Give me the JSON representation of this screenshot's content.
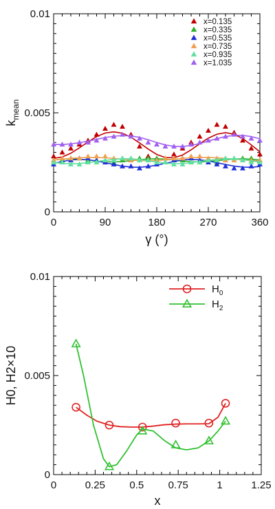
{
  "chart_data": [
    {
      "type": "scatter",
      "xlabel": "γ (°)",
      "ylabel_main": "k",
      "ylabel_sub": "mean",
      "xlim": [
        0,
        360
      ],
      "ylim": [
        0,
        0.01
      ],
      "xticks": [
        0,
        90,
        180,
        270,
        360
      ],
      "xtick_labels": [
        "0",
        "90",
        "180",
        "270",
        "360"
      ],
      "yticks": [
        0,
        0.005,
        0.01
      ],
      "ytick_labels": [
        "0",
        "0.005",
        "0.01"
      ],
      "grid": false,
      "legend_position": "top-right",
      "x": [
        0,
        15,
        30,
        45,
        60,
        75,
        90,
        105,
        120,
        135,
        150,
        165,
        180,
        195,
        210,
        225,
        240,
        255,
        270,
        285,
        300,
        315,
        330,
        345,
        360
      ],
      "series": [
        {
          "name": "x=0.135",
          "color": "#c00000",
          "values": [
            0.0028,
            0.003,
            0.0032,
            0.0034,
            0.0036,
            0.0039,
            0.0042,
            0.0044,
            0.0043,
            0.0039,
            0.0033,
            0.0028,
            0.0026,
            0.0027,
            0.0029,
            0.0032,
            0.0035,
            0.0038,
            0.0041,
            0.0044,
            0.0043,
            0.004,
            0.0036,
            0.0032,
            0.0029
          ],
          "fit": [
            0.0027,
            0.00277,
            0.00296,
            0.00323,
            0.00353,
            0.0038,
            0.00398,
            0.00404,
            0.00397,
            0.00377,
            0.00348,
            0.00317,
            0.0029,
            0.00274,
            0.00273,
            0.00287,
            0.00313,
            0.00344,
            0.00372,
            0.00392,
            0.004,
            0.00392,
            0.0037,
            0.00338,
            0.00303
          ]
        },
        {
          "name": "x=0.335",
          "color": "#2ab02a",
          "values": [
            0.0026,
            0.0026,
            0.0027,
            0.0027,
            0.0026,
            0.0026,
            0.0025,
            0.0025,
            0.0026,
            0.0026,
            0.0027,
            0.0027,
            0.0027,
            0.0027,
            0.0026,
            0.0026,
            0.0025,
            0.0025,
            0.0025,
            0.0025,
            0.0026,
            0.0026,
            0.0027,
            0.0027,
            0.0026
          ],
          "fit": [
            0.00262,
            0.00266,
            0.00268,
            0.00266,
            0.00262,
            0.00257,
            0.00253,
            0.00252,
            0.00254,
            0.00258,
            0.00263,
            0.00267,
            0.00268,
            0.00266,
            0.00262,
            0.00257,
            0.00253,
            0.00252,
            0.00254,
            0.00258,
            0.00263,
            0.00267,
            0.00268,
            0.00266,
            0.00262
          ]
        },
        {
          "name": "x=0.535",
          "color": "#2030d8",
          "values": [
            0.0024,
            0.0025,
            0.0026,
            0.0027,
            0.0027,
            0.0026,
            0.0025,
            0.0024,
            0.0023,
            0.0023,
            0.0022,
            0.0023,
            0.0024,
            0.0025,
            0.0026,
            0.0027,
            0.0027,
            0.0026,
            0.0025,
            0.0024,
            0.0023,
            0.0022,
            0.0022,
            0.0023,
            0.0024
          ],
          "fit": [
            0.00245,
            0.00254,
            0.00262,
            0.00265,
            0.00263,
            0.00257,
            0.00248,
            0.00239,
            0.00231,
            0.00226,
            0.00225,
            0.00229,
            0.00236,
            0.00245,
            0.00254,
            0.00262,
            0.00265,
            0.00263,
            0.00257,
            0.00248,
            0.00239,
            0.00231,
            0.00226,
            0.00225,
            0.00229
          ]
        },
        {
          "name": "x=0.735",
          "color": "#f0a050",
          "values": [
            0.0026,
            0.0027,
            0.0027,
            0.0027,
            0.0028,
            0.0028,
            0.0028,
            0.0027,
            0.0027,
            0.0026,
            0.0026,
            0.0026,
            0.0026,
            0.0027,
            0.0027,
            0.0027,
            0.0028,
            0.0028,
            0.0027,
            0.0027,
            0.0026,
            0.0026,
            0.0026,
            0.0026,
            0.0026
          ],
          "fit": [
            0.00262,
            0.00266,
            0.0027,
            0.00273,
            0.00275,
            0.00275,
            0.00273,
            0.0027,
            0.00266,
            0.00262,
            0.00259,
            0.00258,
            0.00259,
            0.00262,
            0.00266,
            0.0027,
            0.00273,
            0.00275,
            0.00275,
            0.00273,
            0.0027,
            0.00266,
            0.00262,
            0.00259,
            0.00258
          ]
        },
        {
          "name": "x=0.935",
          "color": "#60e0a0",
          "values": [
            0.0025,
            0.0025,
            0.0024,
            0.0024,
            0.0025,
            0.0025,
            0.0026,
            0.0026,
            0.0027,
            0.0027,
            0.0026,
            0.0026,
            0.0025,
            0.0025,
            0.0024,
            0.0024,
            0.0025,
            0.0025,
            0.0026,
            0.0026,
            0.0027,
            0.0027,
            0.0026,
            0.0025,
            0.0025
          ],
          "fit": [
            0.0025,
            0.00245,
            0.00243,
            0.00244,
            0.00248,
            0.00254,
            0.0026,
            0.00265,
            0.00268,
            0.00268,
            0.00264,
            0.00258,
            0.00251,
            0.00246,
            0.00243,
            0.00244,
            0.00248,
            0.00254,
            0.0026,
            0.00265,
            0.00268,
            0.00268,
            0.00264,
            0.00258,
            0.00251
          ]
        },
        {
          "name": "x=1.035",
          "color": "#a060f0",
          "values": [
            0.0034,
            0.0034,
            0.0034,
            0.0035,
            0.0035,
            0.0036,
            0.0037,
            0.0038,
            0.0039,
            0.0038,
            0.0037,
            0.0035,
            0.0034,
            0.0033,
            0.0033,
            0.0033,
            0.0034,
            0.0035,
            0.0036,
            0.0037,
            0.0038,
            0.0039,
            0.0038,
            0.0037,
            0.0036
          ],
          "fit": [
            0.0034,
            0.0034,
            0.00343,
            0.00349,
            0.00357,
            0.00366,
            0.00375,
            0.00382,
            0.00385,
            0.00383,
            0.00376,
            0.00364,
            0.0035,
            0.00338,
            0.00331,
            0.0033,
            0.00335,
            0.00345,
            0.00357,
            0.0037,
            0.0038,
            0.00386,
            0.00386,
            0.0038,
            0.00369
          ]
        }
      ]
    },
    {
      "type": "line",
      "xlabel": "x",
      "ylabel": "H0, H2×10",
      "xlim": [
        0,
        1.25
      ],
      "ylim": [
        0,
        0.01
      ],
      "xticks": [
        0,
        0.25,
        0.5,
        0.75,
        1,
        1.25
      ],
      "xtick_labels": [
        "0",
        "0.25",
        "0.5",
        "0.75",
        "1",
        "1.25"
      ],
      "yticks": [
        0,
        0.005,
        0.01
      ],
      "ytick_labels": [
        "0",
        "0.005",
        "0.01"
      ],
      "grid": false,
      "legend_position": "top-right",
      "series": [
        {
          "name_main": "H",
          "name_sub": "0",
          "color": "#e02020",
          "marker": "circle",
          "x": [
            0.135,
            0.335,
            0.535,
            0.735,
            0.935,
            1.035
          ],
          "values": [
            0.0034,
            0.0025,
            0.0024,
            0.0026,
            0.0026,
            0.0036
          ],
          "curve_x": [
            0.135,
            0.2,
            0.26,
            0.335,
            0.4,
            0.47,
            0.535,
            0.6,
            0.67,
            0.735,
            0.8,
            0.87,
            0.935,
            0.99,
            1.035
          ],
          "curve_y": [
            0.0034,
            0.003,
            0.0027,
            0.0025,
            0.00242,
            0.0024,
            0.0024,
            0.00245,
            0.00252,
            0.00255,
            0.00256,
            0.00256,
            0.00257,
            0.0029,
            0.0036
          ]
        },
        {
          "name_main": "H",
          "name_sub": "2",
          "color": "#30c030",
          "marker": "triangle",
          "x": [
            0.135,
            0.335,
            0.535,
            0.735,
            0.935,
            1.035
          ],
          "values": [
            0.0066,
            0.0004,
            0.0022,
            0.0015,
            0.0017,
            0.0027
          ],
          "curve_x": [
            0.135,
            0.18,
            0.24,
            0.3,
            0.335,
            0.38,
            0.44,
            0.5,
            0.535,
            0.6,
            0.67,
            0.735,
            0.8,
            0.87,
            0.935,
            0.99,
            1.035
          ],
          "curve_y": [
            0.0066,
            0.005,
            0.0025,
            0.0008,
            0.0004,
            0.0005,
            0.0012,
            0.002,
            0.0023,
            0.0022,
            0.0017,
            0.00135,
            0.00125,
            0.00135,
            0.0017,
            0.0022,
            0.0027
          ]
        }
      ]
    }
  ]
}
